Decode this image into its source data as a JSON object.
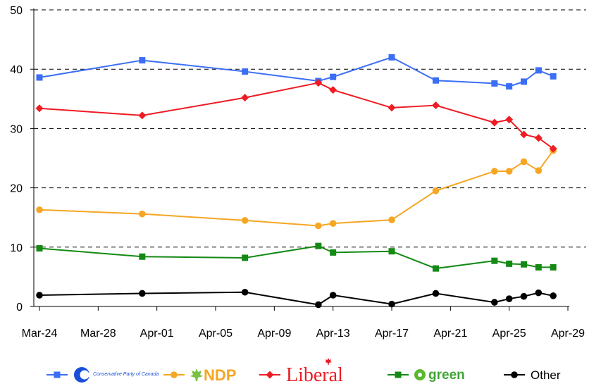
{
  "chart_data": {
    "type": "line",
    "ylim": [
      0,
      50
    ],
    "y_ticks": [
      "0",
      "10",
      "20",
      "30",
      "40",
      "50"
    ],
    "y_tick_values": [
      0,
      10,
      20,
      30,
      40,
      50
    ],
    "x_tick_labels": [
      "Mar-24",
      "Mar-28",
      "Apr-01",
      "Apr-05",
      "Apr-09",
      "Apr-13",
      "Apr-17",
      "Apr-21",
      "Apr-25",
      "Apr-29"
    ],
    "x_tick_days": [
      0,
      4,
      8,
      12,
      16,
      20,
      24,
      28,
      32,
      36
    ],
    "xlim_days": [
      0,
      36
    ],
    "grid": "horizontal-dashed",
    "legend_position": "bottom",
    "series": [
      {
        "key": "conservative",
        "legend": {
          "kind": "logo",
          "text": "Conservative Party of Canada"
        },
        "color": "#3b6ef5",
        "marker": "square",
        "x_days": [
          0,
          7,
          14,
          19,
          20,
          24,
          27,
          31,
          32,
          33,
          34,
          35
        ],
        "values": [
          38.6,
          41.5,
          39.6,
          38.0,
          38.7,
          42.0,
          38.1,
          37.6,
          37.1,
          37.9,
          39.8,
          38.8
        ]
      },
      {
        "key": "ndp",
        "legend": {
          "kind": "logo",
          "text": "NDP"
        },
        "color": "#f5a623",
        "marker": "circle",
        "x_days": [
          0,
          7,
          14,
          19,
          20,
          24,
          27,
          31,
          32,
          33,
          34,
          35
        ],
        "values": [
          16.3,
          15.6,
          14.5,
          13.6,
          14.0,
          14.6,
          19.5,
          22.8,
          22.8,
          24.4,
          22.9,
          26.3
        ]
      },
      {
        "key": "liberal",
        "legend": {
          "kind": "logo",
          "text": "Liberal"
        },
        "color": "#ee1c24",
        "marker": "diamond",
        "x_days": [
          0,
          7,
          14,
          19,
          20,
          24,
          27,
          31,
          32,
          33,
          34,
          35
        ],
        "values": [
          33.4,
          32.2,
          35.2,
          37.7,
          36.5,
          33.5,
          33.9,
          31.0,
          31.5,
          29.0,
          28.4,
          26.6
        ]
      },
      {
        "key": "green",
        "legend": {
          "kind": "logo",
          "text": "green"
        },
        "color": "#148a14",
        "marker": "square",
        "x_days": [
          0,
          7,
          14,
          19,
          20,
          24,
          27,
          31,
          32,
          33,
          34,
          35
        ],
        "values": [
          9.8,
          8.4,
          8.2,
          10.2,
          9.1,
          9.3,
          6.4,
          7.7,
          7.2,
          7.1,
          6.6,
          6.6
        ]
      },
      {
        "key": "other",
        "legend": {
          "kind": "text",
          "text": "Other"
        },
        "color": "#000000",
        "marker": "circle",
        "x_days": [
          0,
          7,
          14,
          19,
          20,
          24,
          27,
          31,
          32,
          33,
          34,
          35
        ],
        "values": [
          1.9,
          2.2,
          2.4,
          0.3,
          1.9,
          0.4,
          2.2,
          0.7,
          1.3,
          1.7,
          2.3,
          1.8
        ]
      }
    ]
  }
}
